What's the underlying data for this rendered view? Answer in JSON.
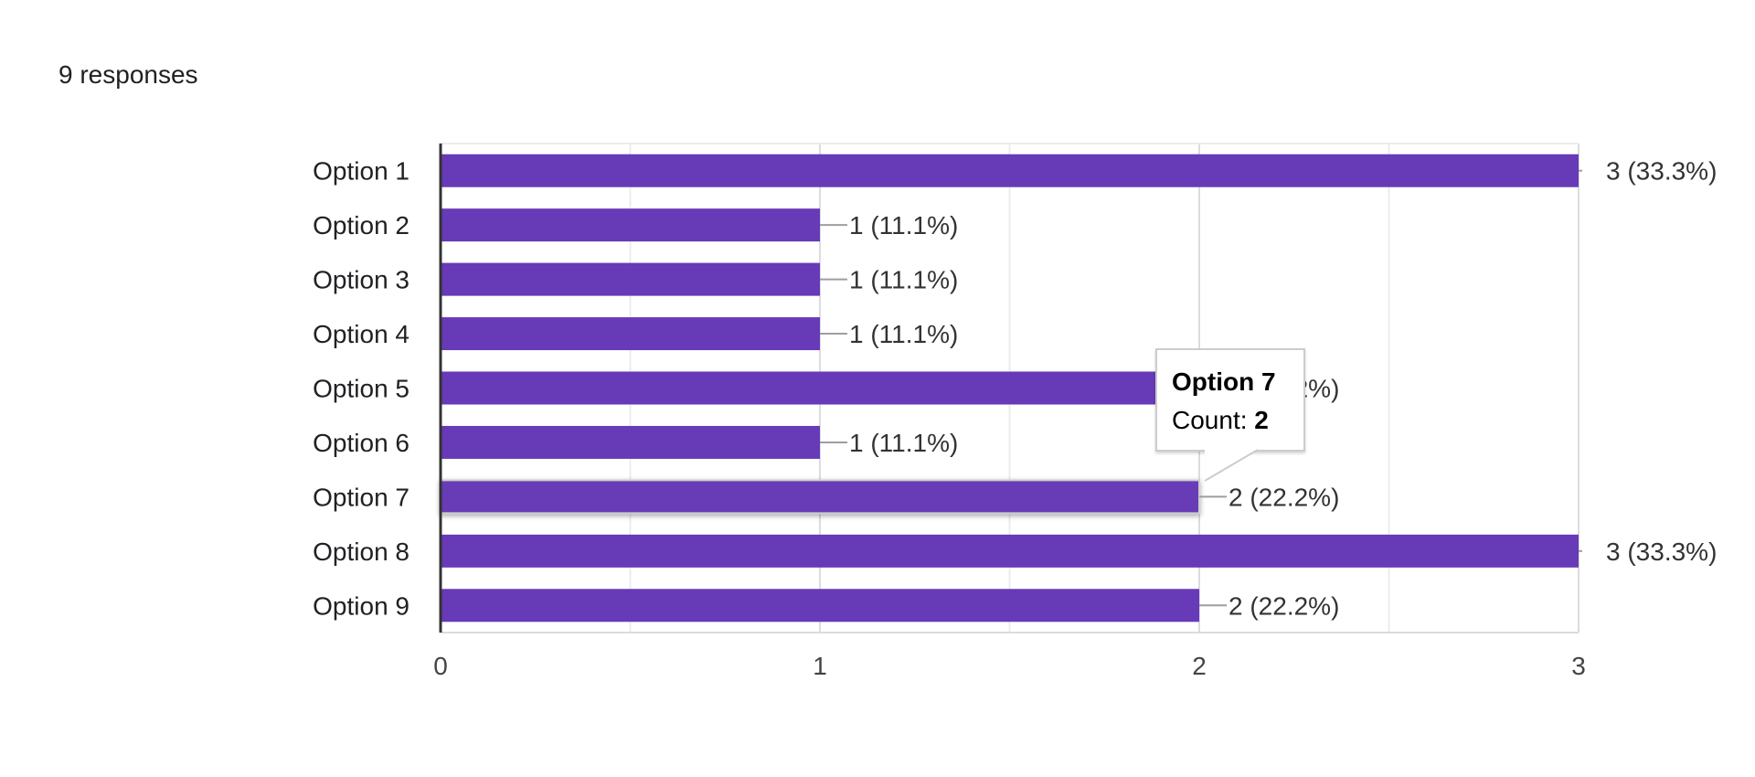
{
  "header": {
    "responses_text": "9 responses"
  },
  "chart_data": {
    "type": "bar",
    "orientation": "horizontal",
    "categories": [
      "Option 1",
      "Option 2",
      "Option 3",
      "Option 4",
      "Option 5",
      "Option 6",
      "Option 7",
      "Option 8",
      "Option 9"
    ],
    "values": [
      3,
      1,
      1,
      1,
      2,
      1,
      2,
      3,
      2
    ],
    "data_labels": [
      "3 (33.3%)",
      "1 (11.1%)",
      "1 (11.1%)",
      "1 (11.1%)",
      "2 (22.2%)",
      "1 (11.1%)",
      "2 (22.2%)",
      "3 (33.3%)",
      "2 (22.2%)"
    ],
    "x_ticks": [
      "0",
      "1",
      "2",
      "3"
    ],
    "xlim": [
      0,
      3
    ],
    "grid": true,
    "bar_color": "#673ab7",
    "highlighted_category": "Option 7"
  },
  "tooltip": {
    "title": "Option 7",
    "count_label": "Count: ",
    "count_value": "2"
  }
}
